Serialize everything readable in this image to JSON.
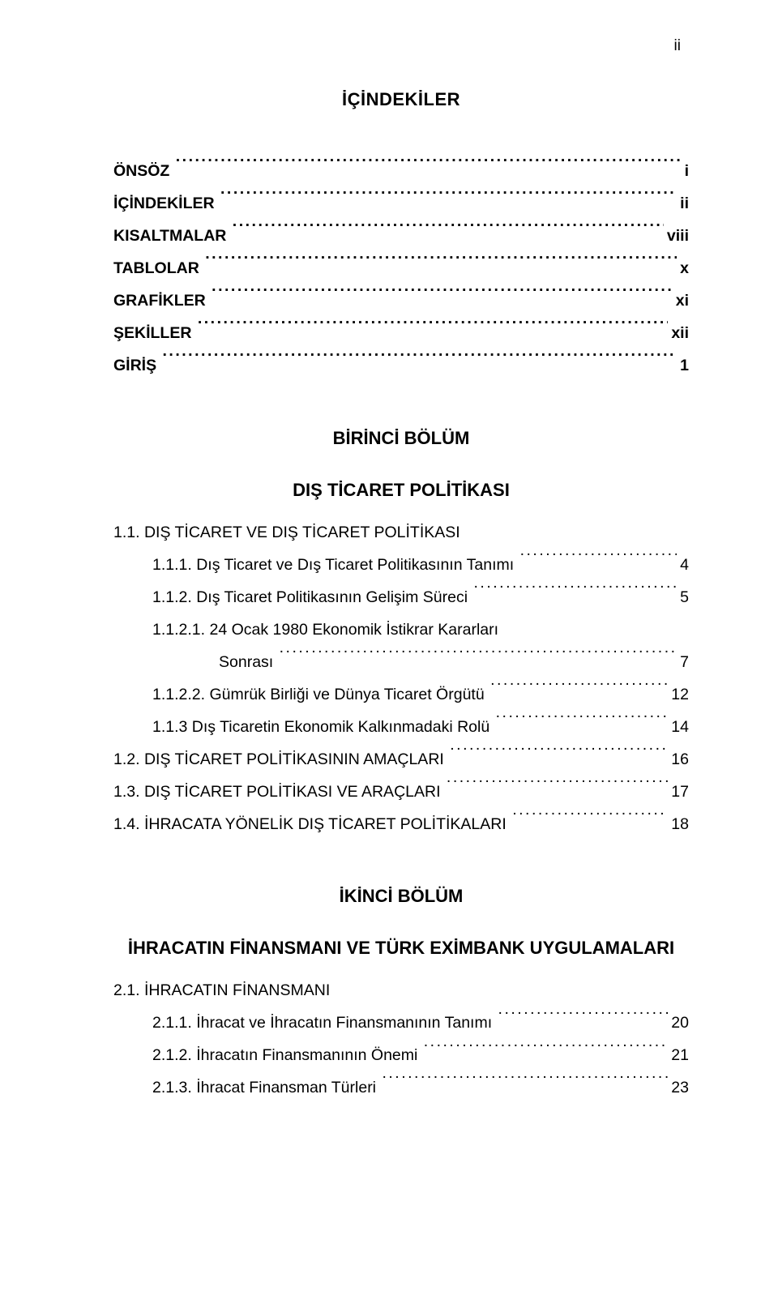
{
  "page_marker": "ii",
  "title": "İÇİNDEKİLER",
  "front_matter": [
    {
      "label": "ÖNSÖZ",
      "page": "i",
      "bold": true,
      "indent": 0
    },
    {
      "label": "İÇİNDEKİLER",
      "page": "ii",
      "bold": true,
      "indent": 0
    },
    {
      "label": "KISALTMALAR",
      "page": "viii",
      "bold": true,
      "indent": 0
    },
    {
      "label": "TABLOLAR",
      "page": "x",
      "bold": true,
      "indent": 0
    },
    {
      "label": "GRAFİKLER",
      "page": "xi",
      "bold": true,
      "indent": 0
    },
    {
      "label": "ŞEKİLLER",
      "page": "xii",
      "bold": true,
      "indent": 0
    },
    {
      "label": "GİRİŞ",
      "page": "1",
      "bold": true,
      "indent": 0
    }
  ],
  "chapter1": {
    "heading": "BİRİNCİ BÖLÜM",
    "subheading": "DIŞ TİCARET POLİTİKASI",
    "entries": [
      {
        "label": "1.1. DIŞ TİCARET VE DIŞ TİCARET POLİTİKASI",
        "page": null,
        "bold": false,
        "indent": 0,
        "leader": false
      },
      {
        "label": "1.1.1. Dış Ticaret ve Dış Ticaret Politikasının Tanımı",
        "page": "4",
        "bold": false,
        "indent": 1,
        "leader": true
      },
      {
        "label": "1.1.2. Dış Ticaret Politikasının Gelişim Süreci",
        "page": "5",
        "bold": false,
        "indent": 1,
        "leader": true
      },
      {
        "label": "1.1.2.1. 24 Ocak 1980 Ekonomik İstikrar Kararları",
        "page": null,
        "bold": false,
        "indent": 1,
        "leader": false
      },
      {
        "label": "Sonrası",
        "page": "7",
        "bold": false,
        "indent": 2,
        "leader": true
      },
      {
        "label": "1.1.2.2. Gümrük Birliği ve Dünya Ticaret Örgütü",
        "page": "12",
        "bold": false,
        "indent": 1,
        "leader": true
      },
      {
        "label": "1.1.3 Dış Ticaretin Ekonomik Kalkınmadaki Rolü",
        "page": "14",
        "bold": false,
        "indent": 1,
        "leader": true
      },
      {
        "label": "1.2. DIŞ TİCARET POLİTİKASININ AMAÇLARI",
        "page": "16",
        "bold": false,
        "indent": 0,
        "leader": true
      },
      {
        "label": "1.3. DIŞ TİCARET POLİTİKASI VE ARAÇLARI",
        "page": "17",
        "bold": false,
        "indent": 0,
        "leader": true
      },
      {
        "label": "1.4. İHRACATA YÖNELİK DIŞ TİCARET POLİTİKALARI",
        "page": "18",
        "bold": false,
        "indent": 0,
        "leader": true
      }
    ]
  },
  "chapter2": {
    "heading": "İKİNCİ BÖLÜM",
    "subheading": "İHRACATIN FİNANSMANI VE TÜRK EXİMBANK UYGULAMALARI",
    "entries": [
      {
        "label": "2.1. İHRACATIN FİNANSMANI",
        "page": null,
        "bold": false,
        "indent": 0,
        "leader": false,
        "gap": true
      },
      {
        "label": "2.1.1. İhracat ve İhracatın Finansmanının Tanımı",
        "page": "20",
        "bold": false,
        "indent": 1,
        "leader": true
      },
      {
        "label": "2.1.2. İhracatın Finansmanının Önemi",
        "page": "21",
        "bold": false,
        "indent": 1,
        "leader": true
      },
      {
        "label": "2.1.3. İhracat Finansman Türleri",
        "page": "23",
        "bold": false,
        "indent": 1,
        "leader": true
      }
    ]
  },
  "colors": {
    "background": "#ffffff",
    "text": "#000000"
  },
  "typography": {
    "body_fontsize_pt": 15,
    "heading_fontsize_pt": 16,
    "font_family": "Arial"
  }
}
